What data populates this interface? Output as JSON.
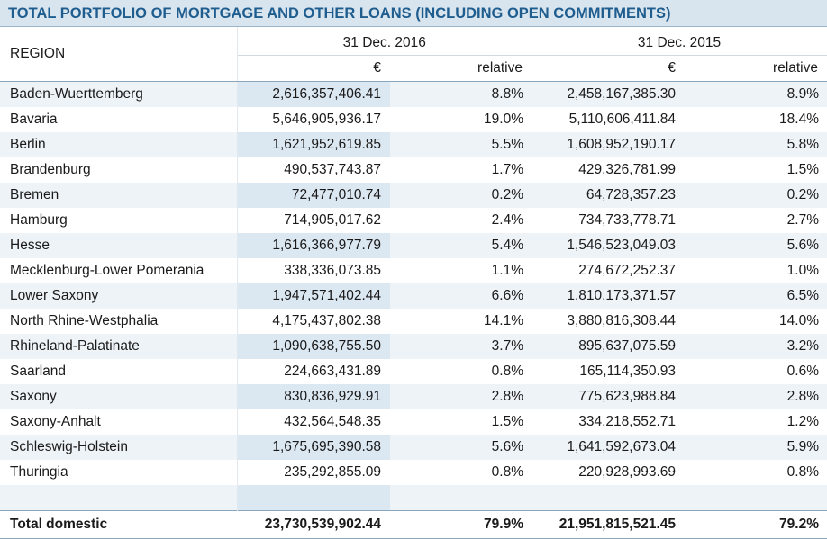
{
  "title": "TOTAL PORTFOLIO OF MORTGAGE AND OTHER LOANS (INCLUDING OPEN COMMITMENTS)",
  "header": {
    "region_label": "REGION",
    "date_2016": "31 Dec. 2016",
    "date_2015": "31 Dec. 2015",
    "unit_eur": "€",
    "unit_relative": "relative"
  },
  "rows": [
    {
      "region": "Baden-Wuerttemberg",
      "eur_2016": "2,616,357,406.41",
      "rel_2016": "8.8%",
      "eur_2015": "2,458,167,385.30",
      "rel_2015": "8.9%"
    },
    {
      "region": "Bavaria",
      "eur_2016": "5,646,905,936.17",
      "rel_2016": "19.0%",
      "eur_2015": "5,110,606,411.84",
      "rel_2015": "18.4%"
    },
    {
      "region": "Berlin",
      "eur_2016": "1,621,952,619.85",
      "rel_2016": "5.5%",
      "eur_2015": "1,608,952,190.17",
      "rel_2015": "5.8%"
    },
    {
      "region": "Brandenburg",
      "eur_2016": "490,537,743.87",
      "rel_2016": "1.7%",
      "eur_2015": "429,326,781.99",
      "rel_2015": "1.5%"
    },
    {
      "region": "Bremen",
      "eur_2016": "72,477,010.74",
      "rel_2016": "0.2%",
      "eur_2015": "64,728,357.23",
      "rel_2015": "0.2%"
    },
    {
      "region": "Hamburg",
      "eur_2016": "714,905,017.62",
      "rel_2016": "2.4%",
      "eur_2015": "734,733,778.71",
      "rel_2015": "2.7%"
    },
    {
      "region": "Hesse",
      "eur_2016": "1,616,366,977.79",
      "rel_2016": "5.4%",
      "eur_2015": "1,546,523,049.03",
      "rel_2015": "5.6%"
    },
    {
      "region": "Mecklenburg-Lower Pomerania",
      "eur_2016": "338,336,073.85",
      "rel_2016": "1.1%",
      "eur_2015": "274,672,252.37",
      "rel_2015": "1.0%"
    },
    {
      "region": "Lower Saxony",
      "eur_2016": "1,947,571,402.44",
      "rel_2016": "6.6%",
      "eur_2015": "1,810,173,371.57",
      "rel_2015": "6.5%"
    },
    {
      "region": "North Rhine-Westphalia",
      "eur_2016": "4,175,437,802.38",
      "rel_2016": "14.1%",
      "eur_2015": "3,880,816,308.44",
      "rel_2015": "14.0%"
    },
    {
      "region": "Rhineland-Palatinate",
      "eur_2016": "1,090,638,755.50",
      "rel_2016": "3.7%",
      "eur_2015": "895,637,075.59",
      "rel_2015": "3.2%"
    },
    {
      "region": "Saarland",
      "eur_2016": "224,663,431.89",
      "rel_2016": "0.8%",
      "eur_2015": "165,114,350.93",
      "rel_2015": "0.6%"
    },
    {
      "region": "Saxony",
      "eur_2016": "830,836,929.91",
      "rel_2016": "2.8%",
      "eur_2015": "775,623,988.84",
      "rel_2015": "2.8%"
    },
    {
      "region": "Saxony-Anhalt",
      "eur_2016": "432,564,548.35",
      "rel_2016": "1.5%",
      "eur_2015": "334,218,552.71",
      "rel_2015": "1.2%"
    },
    {
      "region": "Schleswig-Holstein",
      "eur_2016": "1,675,695,390.58",
      "rel_2016": "5.6%",
      "eur_2015": "1,641,592,673.04",
      "rel_2015": "5.9%"
    },
    {
      "region": "Thuringia",
      "eur_2016": "235,292,855.09",
      "rel_2016": "0.8%",
      "eur_2015": "220,928,993.69",
      "rel_2015": "0.8%"
    }
  ],
  "total": {
    "label": "Total domestic",
    "eur_2016": "23,730,539,902.44",
    "rel_2016": "79.9%",
    "eur_2015": "21,951,815,521.45",
    "rel_2015": "79.2%"
  },
  "colors": {
    "title_bg": "#d8e4ee",
    "title_text": "#1f5d8f",
    "row_stripe": "#eef3f8",
    "column_highlight": "#dbe7f1"
  }
}
